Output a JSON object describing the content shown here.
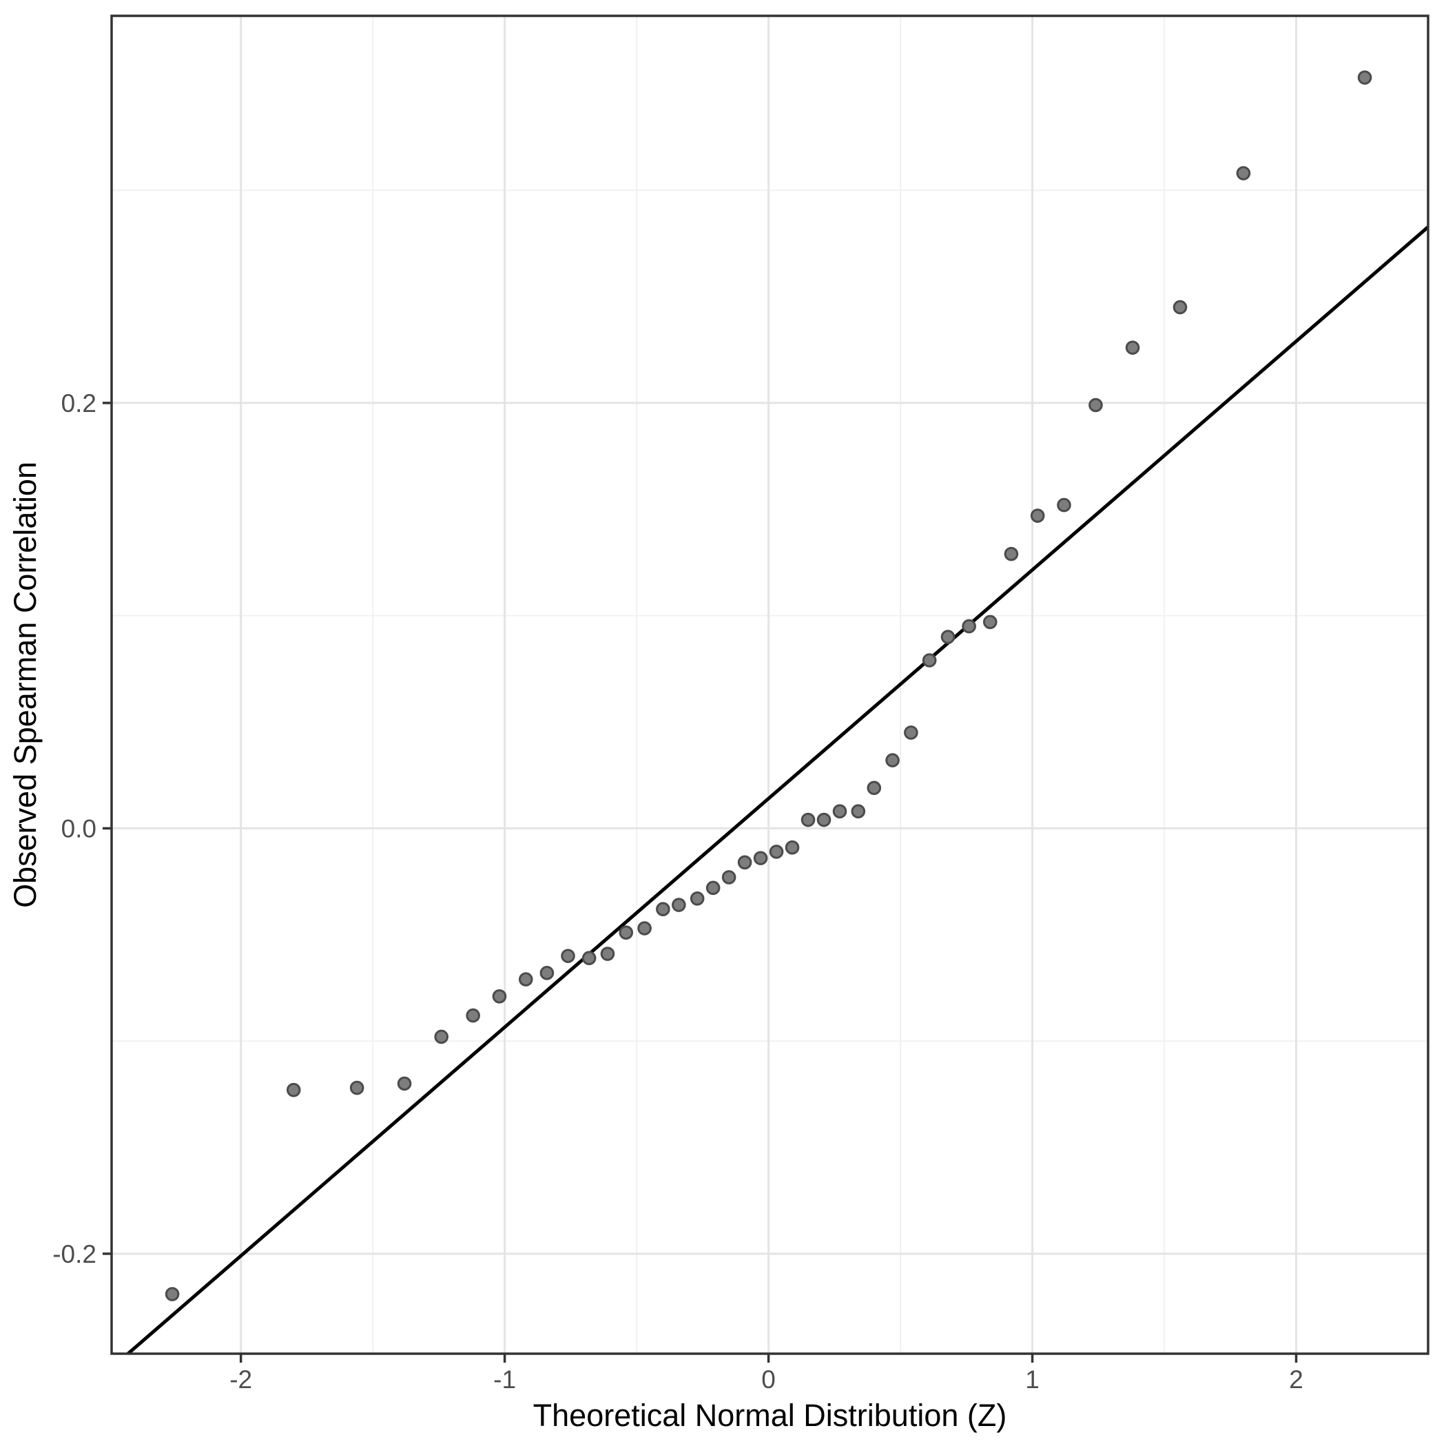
{
  "page": {
    "background": "#ffffff",
    "description": "QQ plot of observed Spearman correlations against theoretical normal quantiles"
  },
  "chart_data": {
    "type": "scatter",
    "title": "",
    "xlabel": "Theoretical Normal Distribution (Z)",
    "ylabel": "Observed Spearman Correlation",
    "x_range": [
      -2.49,
      2.5
    ],
    "y_range": [
      -0.247,
      0.382
    ],
    "grid": true,
    "legend_position": "none",
    "x_major_ticks": [
      {
        "value": -2,
        "label": "-2"
      },
      {
        "value": -1,
        "label": "-1"
      },
      {
        "value": 0,
        "label": "0"
      },
      {
        "value": 1,
        "label": "1"
      },
      {
        "value": 2,
        "label": "2"
      }
    ],
    "x_minor_gridlines": [
      -1.5,
      -0.5,
      0.5,
      1.5
    ],
    "y_major_ticks": [
      {
        "value": 0.2,
        "label": "0.2"
      },
      {
        "value": 0.0,
        "label": "0.0"
      },
      {
        "value": -0.2,
        "label": "-0.2"
      }
    ],
    "y_minor_gridlines": [
      0.3,
      0.1,
      -0.1
    ],
    "reference_line": {
      "slope": 0.1075,
      "intercept": 0.014
    },
    "points": [
      [
        -2.26,
        -0.219
      ],
      [
        -1.8,
        -0.123
      ],
      [
        -1.56,
        -0.122
      ],
      [
        -1.38,
        -0.12
      ],
      [
        -1.24,
        -0.098
      ],
      [
        -1.12,
        -0.088
      ],
      [
        -1.02,
        -0.079
      ],
      [
        -0.92,
        -0.071
      ],
      [
        -0.84,
        -0.068
      ],
      [
        -0.76,
        -0.06
      ],
      [
        -0.68,
        -0.061
      ],
      [
        -0.61,
        -0.059
      ],
      [
        -0.54,
        -0.049
      ],
      [
        -0.47,
        -0.047
      ],
      [
        -0.4,
        -0.038
      ],
      [
        -0.34,
        -0.036
      ],
      [
        -0.27,
        -0.033
      ],
      [
        -0.21,
        -0.028
      ],
      [
        -0.15,
        -0.023
      ],
      [
        -0.09,
        -0.016
      ],
      [
        -0.03,
        -0.014
      ],
      [
        0.03,
        -0.011
      ],
      [
        0.09,
        -0.009
      ],
      [
        0.15,
        0.004
      ],
      [
        0.21,
        0.004
      ],
      [
        0.27,
        0.008
      ],
      [
        0.34,
        0.008
      ],
      [
        0.4,
        0.019
      ],
      [
        0.47,
        0.032
      ],
      [
        0.54,
        0.045
      ],
      [
        0.61,
        0.079
      ],
      [
        0.68,
        0.09
      ],
      [
        0.76,
        0.095
      ],
      [
        0.84,
        0.097
      ],
      [
        0.92,
        0.129
      ],
      [
        1.02,
        0.147
      ],
      [
        1.12,
        0.152
      ],
      [
        1.24,
        0.199
      ],
      [
        1.38,
        0.226
      ],
      [
        1.56,
        0.245
      ],
      [
        1.8,
        0.308
      ],
      [
        2.26,
        0.353
      ]
    ],
    "marker": {
      "shape": "circle",
      "radius_px": 8.8,
      "fill": "#7d7d7d",
      "stroke": "#4b4b4b",
      "stroke_width_px": 3
    },
    "colors": {
      "reference_line": "#000000",
      "panel_border": "#333333",
      "grid_major": "#e4e4e4",
      "grid_minor": "#f0f0f0",
      "tick_mark": "#333333",
      "tick_label": "#4d4d4d",
      "axis_title": "#000000",
      "panel_background": "#ffffff"
    }
  }
}
